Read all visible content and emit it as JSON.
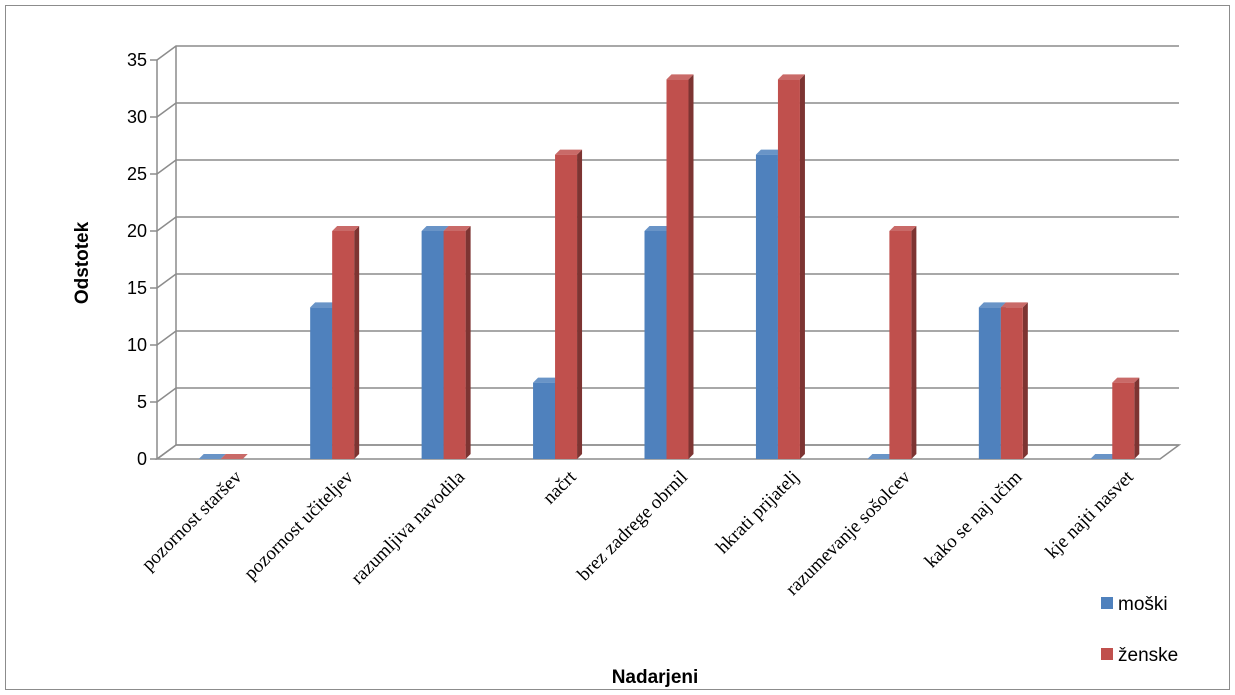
{
  "chart_data": {
    "type": "bar",
    "style": "3d-clustered-column",
    "title": "",
    "xlabel": "Nadarjeni",
    "ylabel": "Odstotek",
    "ylim": [
      0,
      35
    ],
    "yticks": [
      "0",
      "5",
      "10",
      "15",
      "20",
      "25",
      "30",
      "35"
    ],
    "grid": true,
    "legend_position": "bottom-right",
    "categories": [
      "pozornost staršev",
      "pozornost učiteljev",
      "razumljiva navodila",
      "načrt",
      "brez zadrege obrnil",
      "hkrati prijatelj",
      "razumevanje sošolcev",
      "kako se naj učim",
      "kje najti nasvet"
    ],
    "series": [
      {
        "name": "moški",
        "color": "#4F81BD",
        "values": [
          0,
          13.3,
          20,
          6.7,
          20,
          26.7,
          0,
          13.3,
          0
        ]
      },
      {
        "name": "ženske",
        "color": "#C0504D",
        "values": [
          0,
          20,
          20,
          26.7,
          33.3,
          33.3,
          20,
          13.3,
          6.7
        ]
      }
    ]
  }
}
